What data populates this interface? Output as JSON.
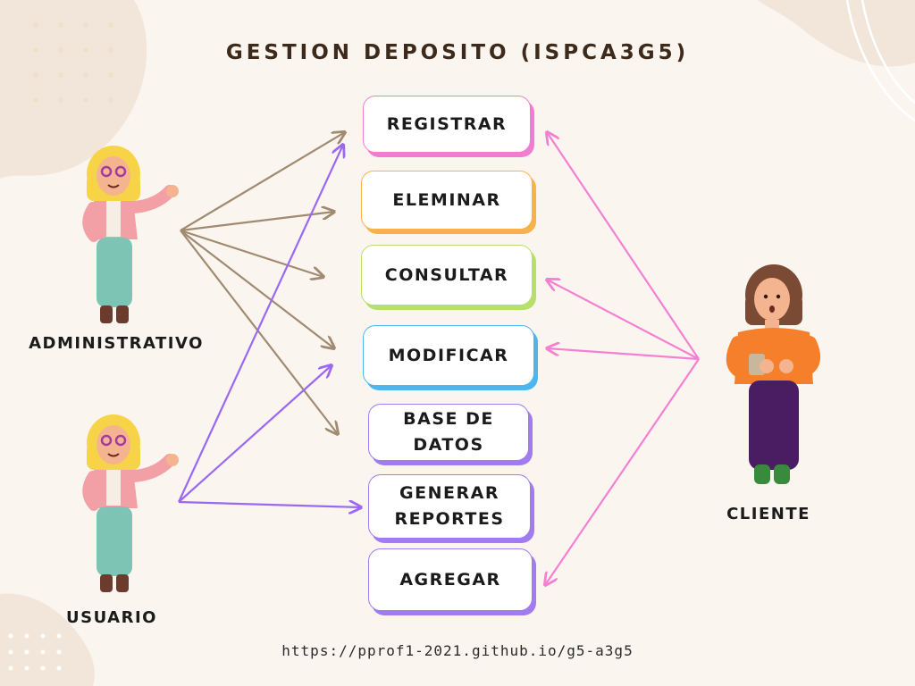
{
  "title": "GESTION DEPOSITO (ISPCA3G5)",
  "footer": "https://pprof1-2021.github.io/g5-a3g5",
  "actors": {
    "admin": {
      "label": "ADMINISTRATIVO"
    },
    "usuario": {
      "label": "USUARIO"
    },
    "cliente": {
      "label": "CLIENTE"
    }
  },
  "use_cases": [
    {
      "id": "registrar",
      "label": "REGISTRAR",
      "color": "#f07ed0"
    },
    {
      "id": "eleminar",
      "label": "ELEMINAR",
      "color": "#f8b24a"
    },
    {
      "id": "consultar",
      "label": "CONSULTAR",
      "color": "#b6e06a"
    },
    {
      "id": "modificar",
      "label": "MODIFICAR",
      "color": "#4eb6ee"
    },
    {
      "id": "base-de-datos",
      "label": "BASE DE\nDATOS",
      "color": "#a07cf0"
    },
    {
      "id": "generar-reportes",
      "label": "GENERAR\nREPORTES",
      "color": "#a07cf0"
    },
    {
      "id": "agregar",
      "label": "AGREGAR",
      "color": "#a07cf0"
    }
  ],
  "colors": {
    "background": "#faf5ef",
    "blob": "#f1e6d9",
    "admin_arrow": "#a08a70",
    "usuario_arrow": "#9a68f2",
    "cliente_arrow": "#f580d2"
  },
  "links": [
    {
      "from": "admin",
      "to": "registrar"
    },
    {
      "from": "admin",
      "to": "eleminar"
    },
    {
      "from": "admin",
      "to": "consultar"
    },
    {
      "from": "admin",
      "to": "modificar"
    },
    {
      "from": "admin",
      "to": "base-de-datos"
    },
    {
      "from": "usuario",
      "to": "registrar"
    },
    {
      "from": "usuario",
      "to": "modificar"
    },
    {
      "from": "usuario",
      "to": "generar-reportes"
    },
    {
      "from": "cliente",
      "to": "registrar"
    },
    {
      "from": "cliente",
      "to": "consultar"
    },
    {
      "from": "cliente",
      "to": "modificar"
    },
    {
      "from": "cliente",
      "to": "agregar"
    }
  ],
  "icons": {
    "admin": "woman-pointing-figure",
    "usuario": "woman-pointing-figure",
    "cliente": "woman-with-phone-figure"
  }
}
